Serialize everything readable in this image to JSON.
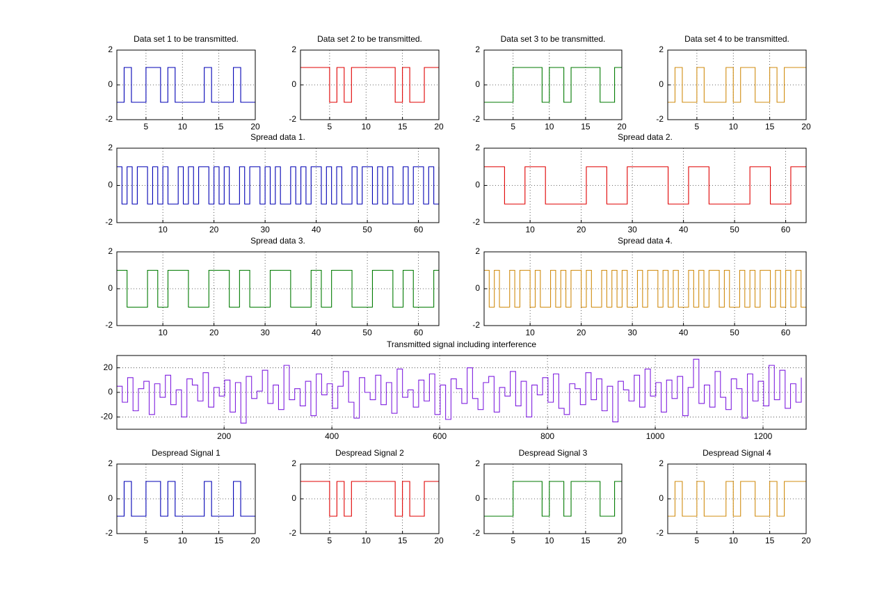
{
  "chart_data": [
    {
      "type": "line",
      "title": "Data set 1 to be transmitted.",
      "drawstyle": "steps-post",
      "grid": true,
      "color": "#0000b4",
      "x": [
        1,
        2,
        3,
        4,
        5,
        6,
        7,
        8,
        9,
        10,
        11,
        12,
        13,
        14,
        15,
        16,
        17,
        18,
        19,
        20
      ],
      "values": [
        -1,
        1,
        -1,
        -1,
        1,
        1,
        -1,
        1,
        -1,
        -1,
        -1,
        -1,
        1,
        -1,
        -1,
        -1,
        1,
        -1,
        -1,
        -1
      ],
      "xlim": [
        1,
        20
      ],
      "xticks": [
        5,
        10,
        15,
        20
      ],
      "ylim": [
        -2,
        2
      ],
      "yticks": [
        -2,
        0,
        2
      ]
    },
    {
      "type": "line",
      "title": "Data set 2 to be transmitted.",
      "drawstyle": "steps-post",
      "grid": true,
      "color": "#e00000",
      "x": [
        1,
        2,
        3,
        4,
        5,
        6,
        7,
        8,
        9,
        10,
        11,
        12,
        13,
        14,
        15,
        16,
        17,
        18,
        19,
        20
      ],
      "values": [
        1,
        1,
        1,
        1,
        -1,
        1,
        -1,
        1,
        1,
        1,
        1,
        1,
        1,
        -1,
        1,
        -1,
        -1,
        1,
        1,
        1
      ],
      "xlim": [
        1,
        20
      ],
      "xticks": [
        5,
        10,
        15,
        20
      ],
      "ylim": [
        -2,
        2
      ],
      "yticks": [
        -2,
        0,
        2
      ]
    },
    {
      "type": "line",
      "title": "Data set 3 to be transmitted.",
      "drawstyle": "steps-post",
      "grid": true,
      "color": "#007a00",
      "x": [
        1,
        2,
        3,
        4,
        5,
        6,
        7,
        8,
        9,
        10,
        11,
        12,
        13,
        14,
        15,
        16,
        17,
        18,
        19,
        20
      ],
      "values": [
        -1,
        -1,
        -1,
        -1,
        1,
        1,
        1,
        1,
        -1,
        1,
        1,
        -1,
        1,
        1,
        1,
        1,
        -1,
        -1,
        1,
        1
      ],
      "xlim": [
        1,
        20
      ],
      "xticks": [
        5,
        10,
        15,
        20
      ],
      "ylim": [
        -2,
        2
      ],
      "yticks": [
        -2,
        0,
        2
      ]
    },
    {
      "type": "line",
      "title": "Data set 4 to be transmitted.",
      "drawstyle": "steps-post",
      "grid": true,
      "color": "#d08c10",
      "x": [
        1,
        2,
        3,
        4,
        5,
        6,
        7,
        8,
        9,
        10,
        11,
        12,
        13,
        14,
        15,
        16,
        17,
        18,
        19,
        20
      ],
      "values": [
        -1,
        1,
        -1,
        -1,
        1,
        -1,
        -1,
        -1,
        1,
        -1,
        1,
        1,
        -1,
        -1,
        1,
        -1,
        1,
        1,
        1,
        1
      ],
      "xlim": [
        1,
        20
      ],
      "xticks": [
        5,
        10,
        15,
        20
      ],
      "ylim": [
        -2,
        2
      ],
      "yticks": [
        -2,
        0,
        2
      ]
    },
    {
      "type": "line",
      "title": "Spread data 1.",
      "drawstyle": "steps-post",
      "grid": true,
      "color": "#0000b4",
      "x": [
        1,
        2,
        3,
        4,
        5,
        6,
        7,
        8,
        9,
        10,
        11,
        12,
        13,
        14,
        15,
        16,
        17,
        18,
        19,
        20,
        21,
        22,
        23,
        24,
        25,
        26,
        27,
        28,
        29,
        30,
        31,
        32,
        33,
        34,
        35,
        36,
        37,
        38,
        39,
        40,
        41,
        42,
        43,
        44,
        45,
        46,
        47,
        48,
        49,
        50,
        51,
        52,
        53,
        54,
        55,
        56,
        57,
        58,
        59,
        60,
        61,
        62,
        63,
        64
      ],
      "values": [
        1,
        -1,
        1,
        -1,
        1,
        1,
        -1,
        1,
        -1,
        1,
        -1,
        -1,
        1,
        -1,
        1,
        -1,
        1,
        1,
        -1,
        1,
        -1,
        1,
        -1,
        -1,
        1,
        -1,
        1,
        1,
        -1,
        1,
        -1,
        1,
        -1,
        -1,
        1,
        -1,
        1,
        -1,
        1,
        1,
        -1,
        1,
        -1,
        1,
        -1,
        -1,
        1,
        -1,
        1,
        1,
        -1,
        1,
        -1,
        1,
        -1,
        -1,
        1,
        -1,
        1,
        1,
        -1,
        1,
        -1,
        1
      ],
      "xlim": [
        1,
        64
      ],
      "xticks": [
        10,
        20,
        30,
        40,
        50,
        60
      ],
      "ylim": [
        -2,
        2
      ],
      "yticks": [
        -2,
        0,
        2
      ]
    },
    {
      "type": "line",
      "title": "Spread data 2.",
      "drawstyle": "steps-post",
      "grid": true,
      "color": "#e00000",
      "x": [
        1,
        2,
        3,
        4,
        5,
        6,
        7,
        8,
        9,
        10,
        11,
        12,
        13,
        14,
        15,
        16,
        17,
        18,
        19,
        20,
        21,
        22,
        23,
        24,
        25,
        26,
        27,
        28,
        29,
        30,
        31,
        32,
        33,
        34,
        35,
        36,
        37,
        38,
        39,
        40,
        41,
        42,
        43,
        44,
        45,
        46,
        47,
        48,
        49,
        50,
        51,
        52,
        53,
        54,
        55,
        56,
        57,
        58,
        59,
        60,
        61,
        62,
        63,
        64
      ],
      "values": [
        1,
        1,
        1,
        1,
        -1,
        -1,
        -1,
        -1,
        1,
        1,
        1,
        1,
        -1,
        -1,
        -1,
        -1,
        -1,
        -1,
        -1,
        -1,
        1,
        1,
        1,
        1,
        -1,
        -1,
        -1,
        -1,
        1,
        1,
        1,
        1,
        1,
        1,
        1,
        1,
        -1,
        -1,
        -1,
        -1,
        1,
        1,
        1,
        1,
        -1,
        -1,
        -1,
        -1,
        -1,
        -1,
        -1,
        -1,
        1,
        1,
        1,
        1,
        -1,
        -1,
        -1,
        -1,
        1,
        1,
        1,
        1
      ],
      "xlim": [
        1,
        64
      ],
      "xticks": [
        10,
        20,
        30,
        40,
        50,
        60
      ],
      "ylim": [
        -2,
        2
      ],
      "yticks": [
        -2,
        0,
        2
      ]
    },
    {
      "type": "line",
      "title": "Spread data 3.",
      "drawstyle": "steps-post",
      "grid": true,
      "color": "#007a00",
      "x": [
        1,
        2,
        3,
        4,
        5,
        6,
        7,
        8,
        9,
        10,
        11,
        12,
        13,
        14,
        15,
        16,
        17,
        18,
        19,
        20,
        21,
        22,
        23,
        24,
        25,
        26,
        27,
        28,
        29,
        30,
        31,
        32,
        33,
        34,
        35,
        36,
        37,
        38,
        39,
        40,
        41,
        42,
        43,
        44,
        45,
        46,
        47,
        48,
        49,
        50,
        51,
        52,
        53,
        54,
        55,
        56,
        57,
        58,
        59,
        60,
        61,
        62,
        63,
        64
      ],
      "values": [
        1,
        1,
        -1,
        -1,
        -1,
        -1,
        1,
        1,
        -1,
        -1,
        1,
        1,
        1,
        1,
        -1,
        -1,
        -1,
        -1,
        1,
        1,
        1,
        1,
        -1,
        -1,
        1,
        1,
        -1,
        -1,
        -1,
        -1,
        1,
        1,
        1,
        1,
        -1,
        -1,
        -1,
        -1,
        1,
        1,
        -1,
        -1,
        1,
        1,
        1,
        1,
        -1,
        -1,
        -1,
        -1,
        1,
        1,
        1,
        1,
        -1,
        -1,
        1,
        1,
        -1,
        -1,
        -1,
        -1,
        1,
        1
      ],
      "xlim": [
        1,
        64
      ],
      "xticks": [
        10,
        20,
        30,
        40,
        50,
        60
      ],
      "ylim": [
        -2,
        2
      ],
      "yticks": [
        -2,
        0,
        2
      ]
    },
    {
      "type": "line",
      "title": "Spread data 4.",
      "drawstyle": "steps-post",
      "grid": true,
      "color": "#d08c10",
      "x": [
        1,
        2,
        3,
        4,
        5,
        6,
        7,
        8,
        9,
        10,
        11,
        12,
        13,
        14,
        15,
        16,
        17,
        18,
        19,
        20,
        21,
        22,
        23,
        24,
        25,
        26,
        27,
        28,
        29,
        30,
        31,
        32,
        33,
        34,
        35,
        36,
        37,
        38,
        39,
        40,
        41,
        42,
        43,
        44,
        45,
        46,
        47,
        48,
        49,
        50,
        51,
        52,
        53,
        54,
        55,
        56,
        57,
        58,
        59,
        60,
        61,
        62,
        63,
        64
      ],
      "values": [
        1,
        -1,
        1,
        -1,
        -1,
        1,
        -1,
        1,
        1,
        -1,
        1,
        -1,
        -1,
        1,
        -1,
        1,
        -1,
        1,
        1,
        -1,
        1,
        -1,
        -1,
        1,
        -1,
        1,
        -1,
        1,
        -1,
        -1,
        1,
        -1,
        1,
        1,
        -1,
        1,
        -1,
        1,
        -1,
        -1,
        1,
        -1,
        1,
        -1,
        1,
        1,
        -1,
        1,
        -1,
        -1,
        1,
        -1,
        1,
        -1,
        1,
        1,
        -1,
        1,
        -1,
        1,
        -1,
        1,
        -1,
        -1
      ],
      "xlim": [
        1,
        64
      ],
      "xticks": [
        10,
        20,
        30,
        40,
        50,
        60
      ],
      "ylim": [
        -2,
        2
      ],
      "yticks": [
        -2,
        0,
        2
      ]
    },
    {
      "type": "line",
      "title": "Transmitted signal including interference",
      "drawstyle": "steps-post",
      "grid": true,
      "color": "#7f1fdf",
      "x": [
        1,
        11,
        21,
        31,
        41,
        51,
        61,
        71,
        81,
        91,
        101,
        111,
        121,
        131,
        141,
        151,
        161,
        171,
        181,
        191,
        201,
        211,
        221,
        231,
        241,
        251,
        261,
        271,
        281,
        291,
        301,
        311,
        321,
        331,
        341,
        351,
        361,
        371,
        381,
        391,
        401,
        411,
        421,
        431,
        441,
        451,
        461,
        471,
        481,
        491,
        501,
        511,
        521,
        531,
        541,
        551,
        561,
        571,
        581,
        591,
        601,
        611,
        621,
        631,
        641,
        651,
        661,
        671,
        681,
        691,
        701,
        711,
        721,
        731,
        741,
        751,
        761,
        771,
        781,
        791,
        801,
        811,
        821,
        831,
        841,
        851,
        861,
        871,
        881,
        891,
        901,
        911,
        921,
        931,
        941,
        951,
        961,
        971,
        981,
        991,
        1001,
        1011,
        1021,
        1031,
        1041,
        1051,
        1061,
        1071,
        1081,
        1091,
        1101,
        1111,
        1121,
        1131,
        1141,
        1151,
        1161,
        1171,
        1181,
        1191,
        1201,
        1211,
        1221,
        1231,
        1241,
        1251,
        1261,
        1271
      ],
      "values": [
        5,
        -8,
        12,
        -15,
        3,
        9,
        -18,
        7,
        -4,
        14,
        -10,
        2,
        -20,
        11,
        6,
        -7,
        16,
        -12,
        4,
        -3,
        10,
        -16,
        8,
        -25,
        13,
        -5,
        1,
        18,
        -9,
        6,
        -14,
        22,
        -6,
        3,
        -11,
        9,
        -19,
        15,
        -2,
        7,
        -13,
        5,
        17,
        -8,
        -21,
        12,
        0,
        -6,
        14,
        -10,
        8,
        -17,
        19,
        -4,
        2,
        -12,
        10,
        -7,
        15,
        -18,
        6,
        -22,
        11,
        3,
        -9,
        20,
        -5,
        -14,
        8,
        13,
        -16,
        4,
        -3,
        17,
        -11,
        9,
        -20,
        6,
        -2,
        12,
        -8,
        15,
        -13,
        -18,
        7,
        3,
        -10,
        16,
        -6,
        11,
        -15,
        5,
        -24,
        9,
        2,
        -7,
        14,
        -12,
        19,
        -3,
        8,
        -16,
        10,
        -5,
        13,
        -19,
        4,
        27,
        -9,
        6,
        -12,
        17,
        -4,
        -14,
        11,
        3,
        -21,
        15,
        -7,
        9,
        -11,
        22,
        -6,
        18,
        -13,
        7,
        -8,
        12
      ],
      "xlim": [
        1,
        1280
      ],
      "xticks": [
        200,
        400,
        600,
        800,
        1000,
        1200
      ],
      "ylim": [
        -30,
        30
      ],
      "yticks": [
        -20,
        0,
        20
      ]
    },
    {
      "type": "line",
      "title": "Despread Signal 1",
      "drawstyle": "steps-post",
      "grid": true,
      "color": "#0000b4",
      "x": [
        1,
        2,
        3,
        4,
        5,
        6,
        7,
        8,
        9,
        10,
        11,
        12,
        13,
        14,
        15,
        16,
        17,
        18,
        19,
        20
      ],
      "values": [
        -1,
        1,
        -1,
        -1,
        1,
        1,
        -1,
        1,
        -1,
        -1,
        -1,
        -1,
        1,
        -1,
        -1,
        -1,
        1,
        -1,
        -1,
        -1
      ],
      "xlim": [
        1,
        20
      ],
      "xticks": [
        5,
        10,
        15,
        20
      ],
      "ylim": [
        -2,
        2
      ],
      "yticks": [
        -2,
        0,
        2
      ]
    },
    {
      "type": "line",
      "title": "Despread Signal 2",
      "drawstyle": "steps-post",
      "grid": true,
      "color": "#e00000",
      "x": [
        1,
        2,
        3,
        4,
        5,
        6,
        7,
        8,
        9,
        10,
        11,
        12,
        13,
        14,
        15,
        16,
        17,
        18,
        19,
        20
      ],
      "values": [
        1,
        1,
        1,
        1,
        -1,
        1,
        -1,
        1,
        1,
        1,
        1,
        1,
        1,
        -1,
        1,
        -1,
        -1,
        1,
        1,
        1
      ],
      "xlim": [
        1,
        20
      ],
      "xticks": [
        5,
        10,
        15,
        20
      ],
      "ylim": [
        -2,
        2
      ],
      "yticks": [
        -2,
        0,
        2
      ]
    },
    {
      "type": "line",
      "title": "Despread Signal 3",
      "drawstyle": "steps-post",
      "grid": true,
      "color": "#007a00",
      "x": [
        1,
        2,
        3,
        4,
        5,
        6,
        7,
        8,
        9,
        10,
        11,
        12,
        13,
        14,
        15,
        16,
        17,
        18,
        19,
        20
      ],
      "values": [
        -1,
        -1,
        -1,
        -1,
        1,
        1,
        1,
        1,
        -1,
        1,
        1,
        -1,
        1,
        1,
        1,
        1,
        -1,
        -1,
        1,
        1
      ],
      "xlim": [
        1,
        20
      ],
      "xticks": [
        5,
        10,
        15,
        20
      ],
      "ylim": [
        -2,
        2
      ],
      "yticks": [
        -2,
        0,
        2
      ]
    },
    {
      "type": "line",
      "title": "Despread Signal 4",
      "drawstyle": "steps-post",
      "grid": true,
      "color": "#d08c10",
      "x": [
        1,
        2,
        3,
        4,
        5,
        6,
        7,
        8,
        9,
        10,
        11,
        12,
        13,
        14,
        15,
        16,
        17,
        18,
        19,
        20
      ],
      "values": [
        -1,
        1,
        -1,
        -1,
        1,
        -1,
        -1,
        -1,
        1,
        -1,
        1,
        1,
        -1,
        -1,
        1,
        -1,
        1,
        1,
        1,
        1
      ],
      "xlim": [
        1,
        20
      ],
      "xticks": [
        5,
        10,
        15,
        20
      ],
      "ylim": [
        -2,
        2
      ],
      "yticks": [
        -2,
        0,
        2
      ]
    }
  ]
}
